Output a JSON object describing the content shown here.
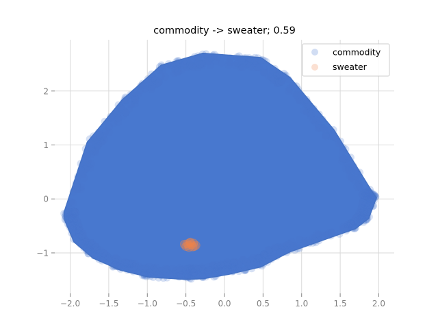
{
  "chart_data": {
    "type": "scatter",
    "title": "commodity -> sweater; 0.59",
    "xlabel": "",
    "ylabel": "",
    "xlim": [
      -2.2,
      2.2
    ],
    "ylim": [
      -1.75,
      2.95
    ],
    "xticks": [
      -2.0,
      -1.5,
      -1.0,
      -0.5,
      0.0,
      0.5,
      1.0,
      1.5,
      2.0
    ],
    "xtick_labels": [
      "−2.0",
      "−1.5",
      "−1.0",
      "−0.5",
      "0.0",
      "0.5",
      "1.0",
      "1.5",
      "2.0"
    ],
    "yticks": [
      -1,
      0,
      1,
      2
    ],
    "ytick_labels": [
      "−1",
      "0",
      "1",
      "2"
    ],
    "grid": true,
    "legend_position": "top-right",
    "series": [
      {
        "name": "commodity",
        "color": "#4878cf",
        "hull": [
          [
            -2.08,
            -0.25
          ],
          [
            -1.78,
            1.05
          ],
          [
            -1.33,
            1.83
          ],
          [
            -0.82,
            2.48
          ],
          [
            -0.28,
            2.7
          ],
          [
            0.47,
            2.62
          ],
          [
            0.85,
            2.25
          ],
          [
            1.42,
            1.28
          ],
          [
            1.92,
            0.12
          ],
          [
            1.97,
            0.02
          ],
          [
            1.87,
            -0.36
          ],
          [
            1.7,
            -0.55
          ],
          [
            0.85,
            -0.98
          ],
          [
            0.47,
            -1.26
          ],
          [
            0.05,
            -1.4
          ],
          [
            -0.28,
            -1.48
          ],
          [
            -0.52,
            -1.49
          ],
          [
            -0.98,
            -1.45
          ],
          [
            -1.35,
            -1.32
          ],
          [
            -1.7,
            -1.1
          ],
          [
            -1.95,
            -0.8
          ],
          [
            -2.07,
            -0.4
          ]
        ],
        "centers": [
          [
            -0.45,
            -0.95
          ]
        ]
      },
      {
        "name": "sweater",
        "color": "#ee854a",
        "points": [
          [
            -0.52,
            -0.84
          ],
          [
            -0.48,
            -0.83
          ],
          [
            -0.44,
            -0.8
          ],
          [
            -0.4,
            -0.82
          ],
          [
            -0.37,
            -0.86
          ],
          [
            -0.41,
            -0.89
          ],
          [
            -0.46,
            -0.9
          ],
          [
            -0.5,
            -0.88
          ],
          [
            -0.47,
            -0.86
          ],
          [
            -0.43,
            -0.85
          ],
          [
            -0.45,
            -0.81
          ],
          [
            -0.39,
            -0.88
          ]
        ]
      }
    ],
    "hull_color": "#4472c4"
  }
}
